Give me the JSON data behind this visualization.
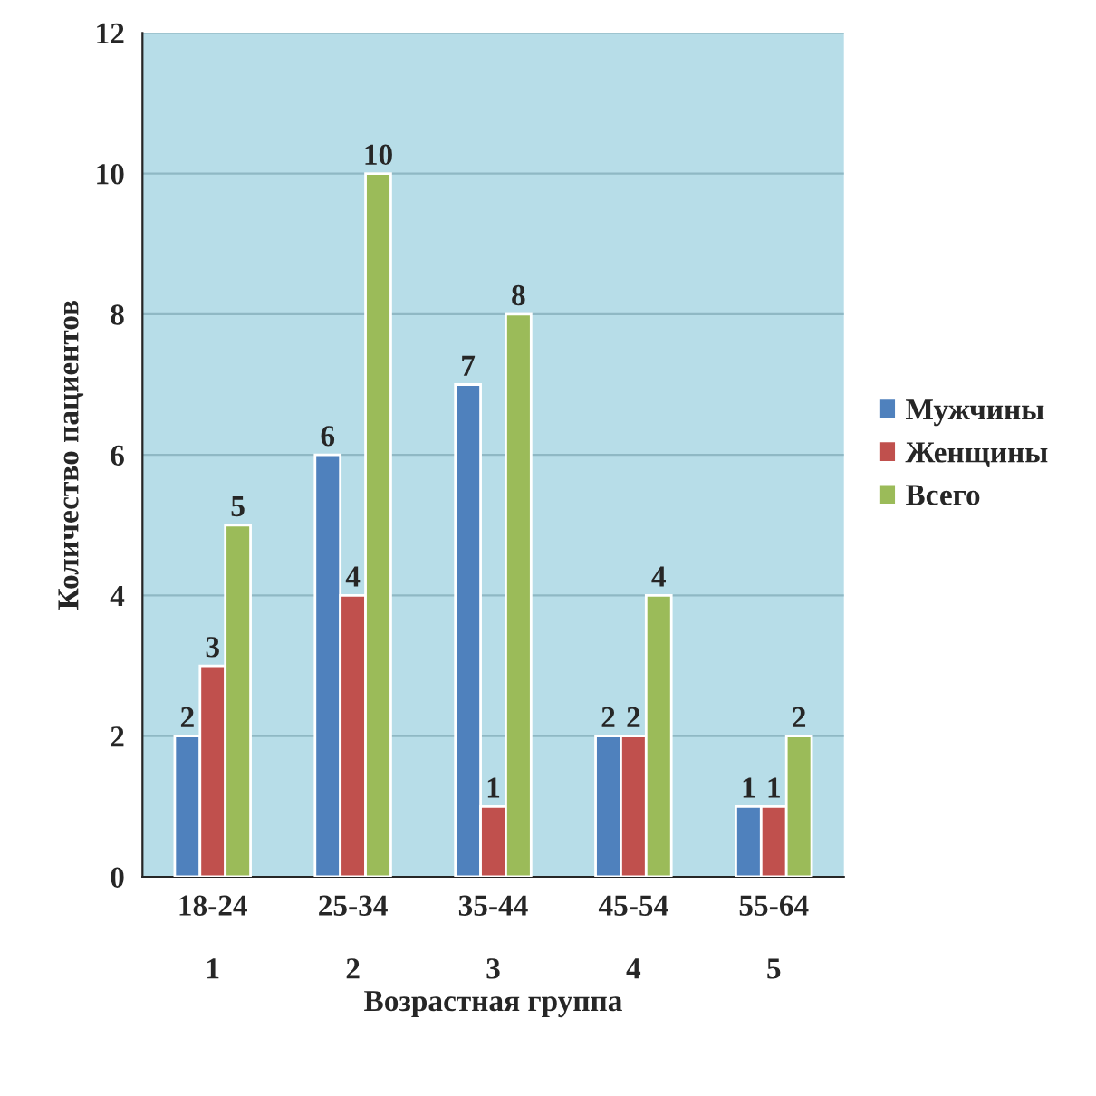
{
  "chart_data": {
    "type": "bar",
    "xlabel": "Возрастная группа",
    "ylabel": "Количество пациентов",
    "categories": [
      "18-24\n\n1",
      "25-34\n\n2",
      "35-44\n\n3",
      "45-54\n\n4",
      "55-64\n\n5"
    ],
    "series": [
      {
        "name": "Мужчины",
        "color": "#4f81bd",
        "values": [
          2,
          6,
          7,
          2,
          1
        ]
      },
      {
        "name": "Женщины",
        "color": "#c0504d",
        "values": [
          3,
          4,
          1,
          2,
          1
        ]
      },
      {
        "name": "Всего",
        "color": "#9bbb59",
        "values": [
          5,
          10,
          8,
          4,
          2
        ]
      }
    ],
    "ylim": [
      0,
      12
    ],
    "yticks": [
      0,
      2,
      4,
      6,
      8,
      10,
      12
    ],
    "grid": "y",
    "legend": "right",
    "data_labels": true
  }
}
